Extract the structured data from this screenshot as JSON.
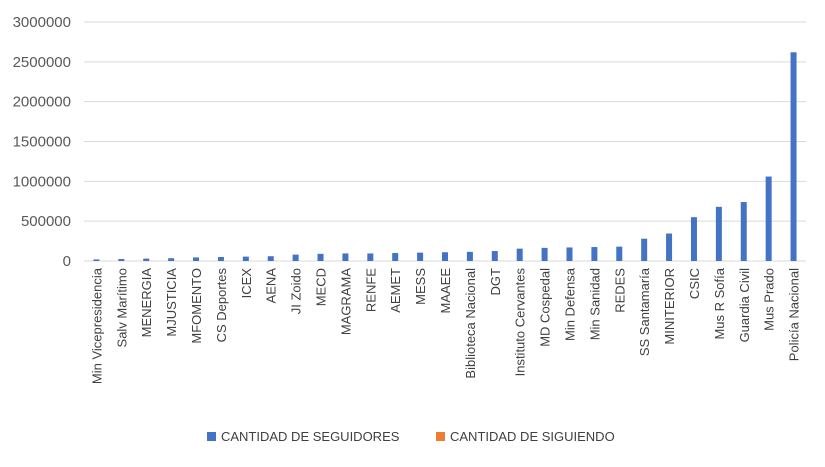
{
  "chart_data": {
    "type": "bar",
    "title": "",
    "xlabel": "",
    "ylabel": "",
    "ylim": [
      0,
      3000000
    ],
    "yticks": [
      0,
      500000,
      1000000,
      1500000,
      2000000,
      2500000,
      3000000
    ],
    "grid": true,
    "legend_position": "bottom",
    "categories": [
      "Min Vicepresidencia",
      "Salv Marítimo",
      "MENERGIA",
      "MJUSTICIA",
      "MFOMENTO",
      "CS Deportes",
      "ICEX",
      "AENA",
      "JI Zoido",
      "MECD",
      "MAGRAMA",
      "RENFE",
      "AEMET",
      "MESS",
      "MAAEE",
      "Biblioteca Nacional",
      "DGT",
      "Instituto Cervantes",
      "MD Cospedal",
      "Min Defensa",
      "Min Sanidad",
      "REDES",
      "SS Santamaría",
      "MINITERIOR",
      "CSIC",
      "Mus R Sofía",
      "Guardia Civil",
      "Mus Prado",
      "Policía Nacional"
    ],
    "series": [
      {
        "name": "CANTIDAD DE SEGUIDORES",
        "color": "#4472c4",
        "values": [
          20000,
          25000,
          30000,
          35000,
          45000,
          50000,
          55000,
          60000,
          80000,
          90000,
          95000,
          95000,
          100000,
          105000,
          110000,
          115000,
          125000,
          155000,
          165000,
          170000,
          175000,
          180000,
          280000,
          345000,
          550000,
          680000,
          740000,
          1060000,
          2620000
        ]
      },
      {
        "name": "CANTIDAD DE SIGUIENDO",
        "color": "#ed7d31",
        "values": [
          0,
          0,
          0,
          0,
          0,
          0,
          0,
          0,
          0,
          0,
          0,
          0,
          0,
          0,
          0,
          0,
          0,
          0,
          0,
          0,
          0,
          0,
          0,
          0,
          0,
          0,
          0,
          0,
          0
        ]
      }
    ]
  }
}
